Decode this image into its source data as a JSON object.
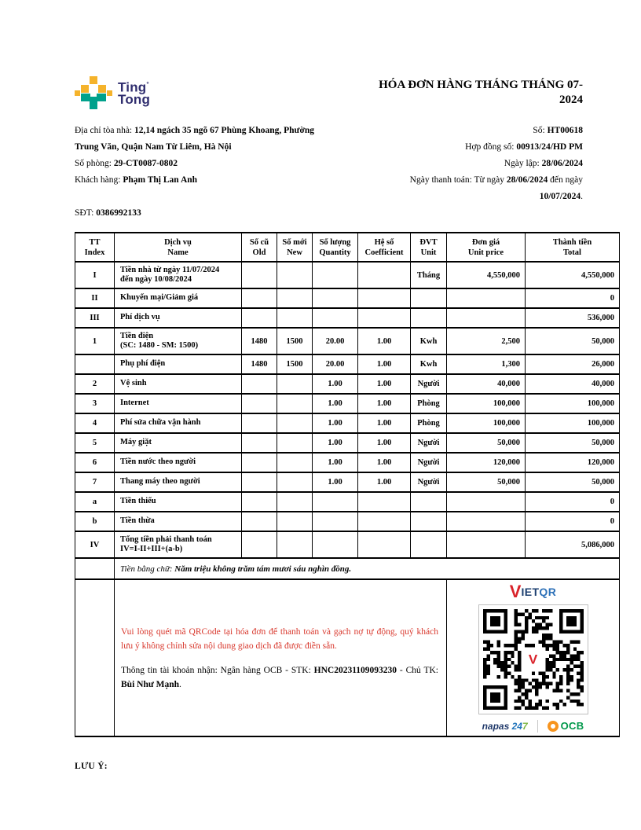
{
  "colors": {
    "brand_yellow": "#F5B32B",
    "brand_teal": "#00A18C",
    "brand_navy": "#2F2D6E",
    "note_red": "#D8372C",
    "vietqr_red": "#D9232A",
    "vietqr_navy": "#1B3E6F",
    "vietqr_blue": "#2D71B8",
    "napas_green": "#7DB742",
    "ocb_orange": "#F7941E",
    "ocb_green": "#00984A"
  },
  "brand": {
    "word1": "Ting",
    "word2": "Tong",
    "mark": "°"
  },
  "title": {
    "line1": "HÓA ĐƠN HÀNG THÁNG THÁNG 07-",
    "line2": "2024"
  },
  "info": {
    "left": [
      [
        {
          "t": "Địa chỉ tòa nhà: "
        },
        {
          "t": "12,14 ngách 35 ngõ 67 Phùng Khoang, Phường",
          "b": true
        }
      ],
      [
        {
          "t": "Trung Văn, Quận Nam Từ Liêm, Hà Nội",
          "b": true
        }
      ],
      [
        {
          "t": "Số phòng: "
        },
        {
          "t": "29-CT0087-0802",
          "b": true
        }
      ],
      [
        {
          "t": "Khách hàng: "
        },
        {
          "t": "Phạm Thị Lan Anh",
          "b": true
        }
      ],
      [
        {
          "t": "SĐT: "
        },
        {
          "t": "0386992133",
          "b": true
        }
      ]
    ],
    "right": [
      [
        {
          "t": "Số: "
        },
        {
          "t": "HT00618",
          "b": true
        }
      ],
      [
        {
          "t": "Hợp đồng số: "
        },
        {
          "t": "00913/24/HD PM",
          "b": true
        }
      ],
      [
        {
          "t": "Ngày lập: "
        },
        {
          "t": "28/06/2024",
          "b": true
        }
      ],
      [
        {
          "t": "Ngày thanh toán: Từ ngày "
        },
        {
          "t": "28/06/2024",
          "b": true
        },
        {
          "t": " đến ngày "
        },
        {
          "t": "10/07/2024",
          "b": true
        },
        {
          "t": "."
        }
      ]
    ]
  },
  "table": {
    "headers": [
      {
        "vi": "TT",
        "en": "Index"
      },
      {
        "vi": "Dịch vụ",
        "en": "Name"
      },
      {
        "vi": "Số cũ",
        "en": "Old"
      },
      {
        "vi": "Số mới",
        "en": "New"
      },
      {
        "vi": "Số lượng",
        "en": "Quantity"
      },
      {
        "vi": "Hệ số",
        "en": "Coefficient"
      },
      {
        "vi": "ĐVT",
        "en": "Unit"
      },
      {
        "vi": "Đơn giá",
        "en": "Unit price"
      },
      {
        "vi": "Thành tiền",
        "en": "Total"
      }
    ],
    "rows": [
      {
        "tt": "I",
        "name": "Tiền nhà từ ngày 11/07/2024",
        "name2": "đến ngày 10/08/2024",
        "old": "",
        "new": "",
        "qty": "",
        "coef": "",
        "unit": "Tháng",
        "price": "4,550,000",
        "total": "4,550,000"
      },
      {
        "tt": "II",
        "name": "Khuyến mại/Giảm giá",
        "old": "",
        "new": "",
        "qty": "",
        "coef": "",
        "unit": "",
        "price": "",
        "total": "0"
      },
      {
        "tt": "III",
        "name": "Phí dịch vụ",
        "old": "",
        "new": "",
        "qty": "",
        "coef": "",
        "unit": "",
        "price": "",
        "total": "536,000"
      },
      {
        "tt": "1",
        "name": "Tiền điện",
        "name2": "(SC: 1480 - SM: 1500)",
        "old": "1480",
        "new": "1500",
        "qty": "20.00",
        "coef": "1.00",
        "unit": "Kwh",
        "price": "2,500",
        "total": "50,000"
      },
      {
        "tt": "",
        "name": "Phụ phí điện",
        "old": "1480",
        "new": "1500",
        "qty": "20.00",
        "coef": "1.00",
        "unit": "Kwh",
        "price": "1,300",
        "total": "26,000"
      },
      {
        "tt": "2",
        "name": "Vệ sinh",
        "old": "",
        "new": "",
        "qty": "1.00",
        "coef": "1.00",
        "unit": "Người",
        "price": "40,000",
        "total": "40,000"
      },
      {
        "tt": "3",
        "name": "Internet",
        "old": "",
        "new": "",
        "qty": "1.00",
        "coef": "1.00",
        "unit": "Phòng",
        "price": "100,000",
        "total": "100,000"
      },
      {
        "tt": "4",
        "name": "Phí sửa chữa vận hành",
        "old": "",
        "new": "",
        "qty": "1.00",
        "coef": "1.00",
        "unit": "Phòng",
        "price": "100,000",
        "total": "100,000"
      },
      {
        "tt": "5",
        "name": "Máy giặt",
        "old": "",
        "new": "",
        "qty": "1.00",
        "coef": "1.00",
        "unit": "Người",
        "price": "50,000",
        "total": "50,000"
      },
      {
        "tt": "6",
        "name": "Tiền nước theo người",
        "old": "",
        "new": "",
        "qty": "1.00",
        "coef": "1.00",
        "unit": "Người",
        "price": "120,000",
        "total": "120,000"
      },
      {
        "tt": "7",
        "name": "Thang máy theo người",
        "old": "",
        "new": "",
        "qty": "1.00",
        "coef": "1.00",
        "unit": "Người",
        "price": "50,000",
        "total": "50,000"
      },
      {
        "tt": "a",
        "name": "Tiền thiếu",
        "old": "",
        "new": "",
        "qty": "",
        "coef": "",
        "unit": "",
        "price": "",
        "total": "0"
      },
      {
        "tt": "b",
        "name": "Tiền thừa",
        "old": "",
        "new": "",
        "qty": "",
        "coef": "",
        "unit": "",
        "price": "",
        "total": "0"
      },
      {
        "tt": "IV",
        "name": "Tổng tiền phải thanh toán",
        "name2": "IV=I-II+III+(a-b)",
        "old": "",
        "new": "",
        "qty": "",
        "coef": "",
        "unit": "",
        "price": "",
        "total": "5,086,000"
      }
    ],
    "amount_in_words": {
      "label": "Tiền bằng chữ: ",
      "value": "Năm triệu không trăm tám mươi sáu nghìn đồng."
    }
  },
  "payment": {
    "note_red": "Vui lòng quét mã QRCode tại hóa đơn để thanh toán và gạch nợ tự động, quý khách lưu ý không chỉnh sửa nội dung giao dịch đã được điền sẵn.",
    "account": [
      {
        "t": "Thông tin tài khoản nhận: Ngân hàng OCB - STK: "
      },
      {
        "t": "HNC20231109093230",
        "b": true
      },
      {
        "t": " - Chủ TK: "
      },
      {
        "t": "Bùi Như Mạnh",
        "b": true
      },
      {
        "t": "."
      }
    ],
    "vietqr": {
      "v": "V",
      "iet": "IET",
      "qr": "QR"
    },
    "napas": {
      "name": "napas",
      "num24": "24",
      "num7": "7"
    },
    "ocb_label": "OCB"
  },
  "footer": {
    "note": "LƯU Ý:"
  }
}
